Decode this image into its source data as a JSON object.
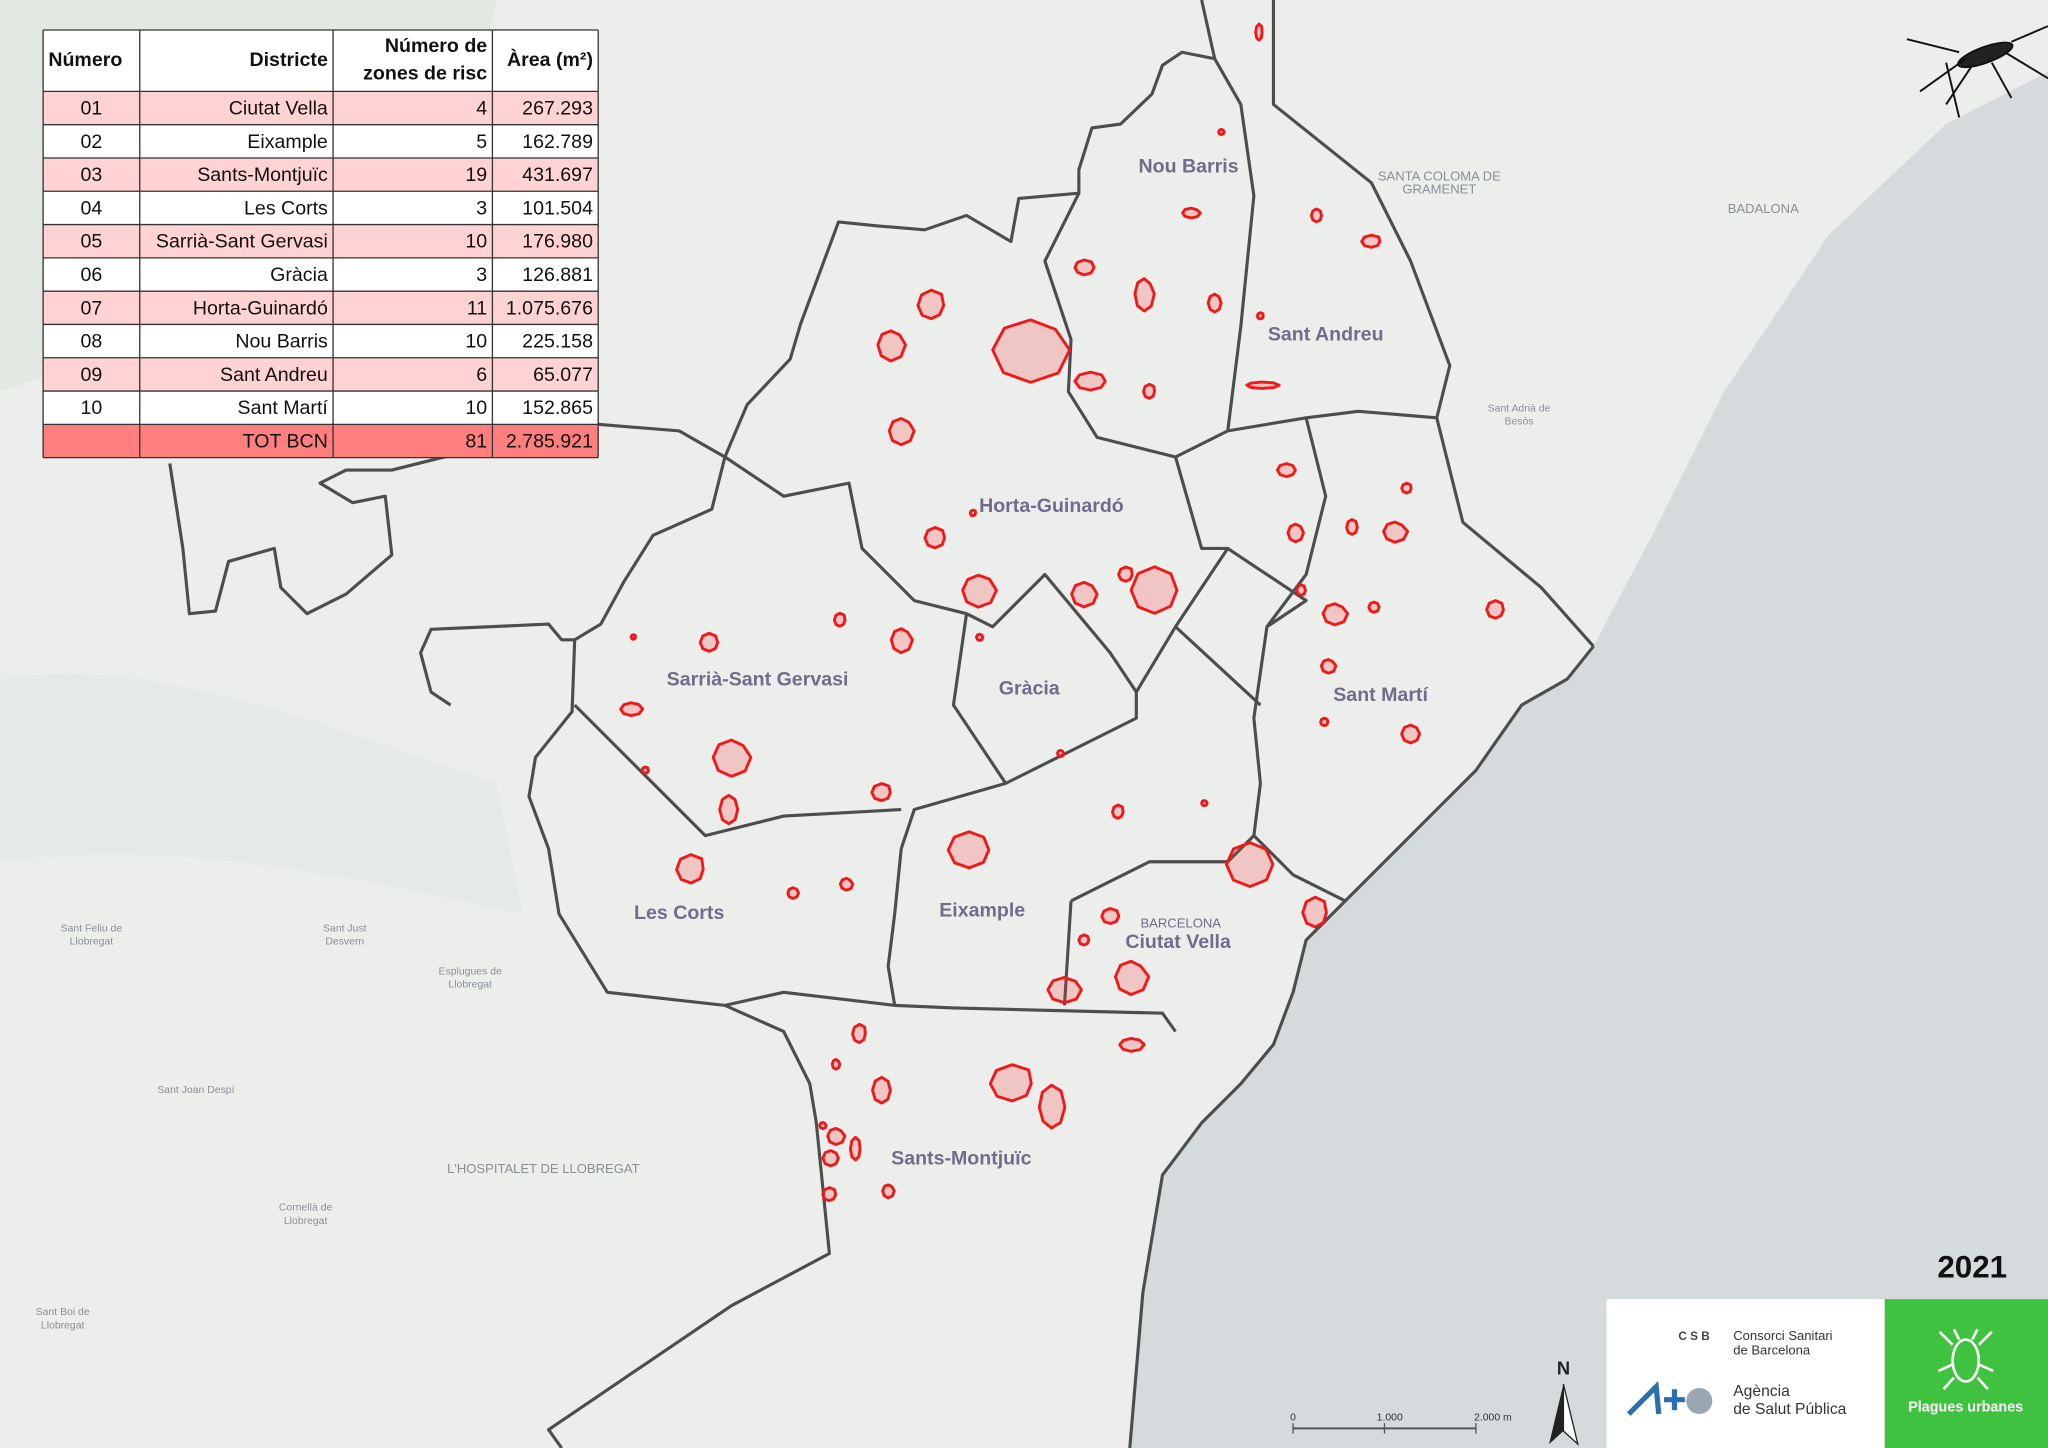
{
  "table": {
    "headers": [
      "Número",
      "Districte",
      [
        "Número de",
        "zones de risc"
      ],
      "Àrea (m²)"
    ],
    "rows": [
      [
        "01",
        "Ciutat Vella",
        "4",
        "267.293"
      ],
      [
        "02",
        "Eixample",
        "5",
        "162.789"
      ],
      [
        "03",
        "Sants-Montjuïc",
        "19",
        "431.697"
      ],
      [
        "04",
        "Les Corts",
        "3",
        "101.504"
      ],
      [
        "05",
        "Sarrià-Sant Gervasi",
        "10",
        "176.980"
      ],
      [
        "06",
        "Gràcia",
        "3",
        "126.881"
      ],
      [
        "07",
        "Horta-Guinardó",
        "11",
        "1.075.676"
      ],
      [
        "08",
        "Nou Barris",
        "10",
        "225.158"
      ],
      [
        "09",
        "Sant Andreu",
        "6",
        "65.077"
      ],
      [
        "10",
        "Sant Martí",
        "10",
        "152.865"
      ]
    ],
    "total": {
      "label": "TOT BCN",
      "zones": "81",
      "area": "2.785.921"
    }
  },
  "districts": [
    "Nou Barris",
    "Sant Andreu",
    "Horta-Guinardó",
    "Sarrià-Sant Gervasi",
    "Gràcia",
    "Sant Martí",
    "Les Corts",
    "Eixample",
    "Ciutat Vella",
    "Sants-Montjuïc"
  ],
  "places": [
    [
      "SANTA COLOMA DE",
      "GRAMENET"
    ],
    [
      "BADALONA"
    ],
    [
      "L'HOSPITALET DE LLOBREGAT"
    ],
    [
      "BARCELONA"
    ],
    [
      "Sant Feliu de",
      "Llobregat"
    ],
    [
      "Sant Just",
      "Desvern"
    ],
    [
      "Esplugues de",
      "Llobregat"
    ],
    [
      "Sant Joan Despí"
    ],
    [
      "Cornellà de",
      "Llobregat"
    ],
    [
      "Sant Boi de",
      "Llobregat"
    ],
    [
      "Sant Adrià de",
      "Besòs"
    ]
  ],
  "year": "2021",
  "scale": [
    "0",
    "1.000",
    "2.000 m"
  ],
  "north": "N",
  "logos": {
    "csb": "C S B",
    "csb_name": [
      "Consorci Sanitari",
      "de Barcelona"
    ],
    "aspb_name": [
      "Agència",
      "de Salut Pública"
    ],
    "app": "Plagues urbanes"
  }
}
